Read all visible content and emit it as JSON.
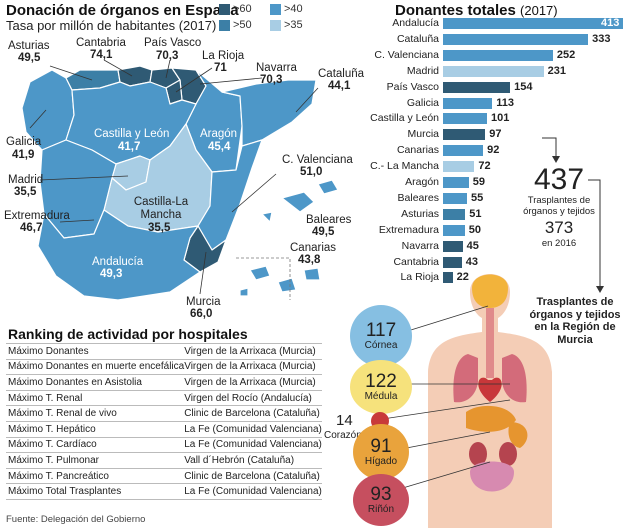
{
  "map": {
    "title": "Donación de órganos en España",
    "subtitle": "Tasa por millón de habitantes (2017)",
    "legend": [
      {
        "label": ">60",
        "color": "#2f5a74"
      },
      {
        "label": ">40",
        "color": "#4d97c8"
      },
      {
        "label": ">50",
        "color": "#3c7fa6"
      },
      {
        "label": ">35",
        "color": "#a8cde4"
      }
    ],
    "regions": [
      {
        "name": "Asturias",
        "value": "49,5"
      },
      {
        "name": "Cantabria",
        "value": "74,1"
      },
      {
        "name": "País Vasco",
        "value": "70,3"
      },
      {
        "name": "La Rioja",
        "value": "71"
      },
      {
        "name": "Navarra",
        "value": "70,3"
      },
      {
        "name": "Cataluña",
        "value": "44,1"
      },
      {
        "name": "Galicia",
        "value": "41,9"
      },
      {
        "name": "Castilla y León",
        "value": "41,7"
      },
      {
        "name": "Aragón",
        "value": "45,4"
      },
      {
        "name": "Madrid",
        "value": "35,5"
      },
      {
        "name": "C. Valenciana",
        "value": "51,0"
      },
      {
        "name": "Extremadura",
        "value": "46,7"
      },
      {
        "name": "Castilla-La Mancha",
        "value": "35,5"
      },
      {
        "name": "Baleares",
        "value": "49,5"
      },
      {
        "name": "Canarias",
        "value": "43,8"
      },
      {
        "name": "Andalucía",
        "value": "49,3"
      },
      {
        "name": "Murcia",
        "value": "66,0"
      }
    ]
  },
  "donors": {
    "title": "Donantes totales",
    "year": "(2017)"
  },
  "chart_data": {
    "type": "bar",
    "title": "Donantes totales (2017)",
    "categories": [
      "Andalucía",
      "Cataluña",
      "C. Valenciana",
      "Madrid",
      "País Vasco",
      "Galicia",
      "Castilla y León",
      "Murcia",
      "Canarias",
      "C.- La Mancha",
      "Aragón",
      "Baleares",
      "Asturias",
      "Extremadura",
      "Navarra",
      "Cantabria",
      "La Rioja"
    ],
    "values": [
      413,
      333,
      252,
      231,
      154,
      113,
      101,
      97,
      92,
      72,
      59,
      55,
      51,
      50,
      45,
      43,
      22
    ],
    "orientation": "horizontal"
  },
  "murcia_stats": {
    "total": "437",
    "total_label": "Trasplantes de órganos y tejidos",
    "prev": "373",
    "prev_label": "en 2016",
    "heading": "Trasplantes de órganos y tejidos en la Región de Murcia"
  },
  "organs": [
    {
      "value": "117",
      "label": "Córnea",
      "color": "#86bfe2"
    },
    {
      "value": "122",
      "label": "Médula",
      "color": "#f6e27c"
    },
    {
      "value": "14",
      "label": "Corazón",
      "color": "#c83a3a"
    },
    {
      "value": "91",
      "label": "Hígado",
      "color": "#e9a33c"
    },
    {
      "value": "93",
      "label": "Riñón",
      "color": "#c64f5f"
    }
  ],
  "ranking": {
    "title": "Ranking de actividad por hospitales",
    "rows": [
      {
        "metric": "Máximo Donantes",
        "hospital": "Virgen de la Arrixaca (Murcia)"
      },
      {
        "metric": "Máximo Donantes en muerte encefálica",
        "hospital": "Virgen de la Arrixaca (Murcia)"
      },
      {
        "metric": "Máximo Donantes en Asistolia",
        "hospital": "Virgen de la Arrixaca (Murcia)"
      },
      {
        "metric": "Máximo T. Renal",
        "hospital": "Virgen del Rocío (Andalucía)"
      },
      {
        "metric": "Máximo T. Renal de vivo",
        "hospital": "Clinic de Barcelona (Cataluña)"
      },
      {
        "metric": "Máximo T. Hepático",
        "hospital": "La Fe (Comunidad Valenciana)"
      },
      {
        "metric": "Máximo T. Cardíaco",
        "hospital": "La Fe (Comunidad Valenciana)"
      },
      {
        "metric": "Máximo T. Pulmonar",
        "hospital": "Vall d´Hebrón (Cataluña)"
      },
      {
        "metric": "Máximo T. Pancreático",
        "hospital": "Clinic de Barcelona (Cataluña)"
      },
      {
        "metric": "Máximo Total Trasplantes",
        "hospital": "La Fe (Comunidad Valenciana)"
      }
    ]
  },
  "source": "Fuente: Delegación del Gobierno"
}
